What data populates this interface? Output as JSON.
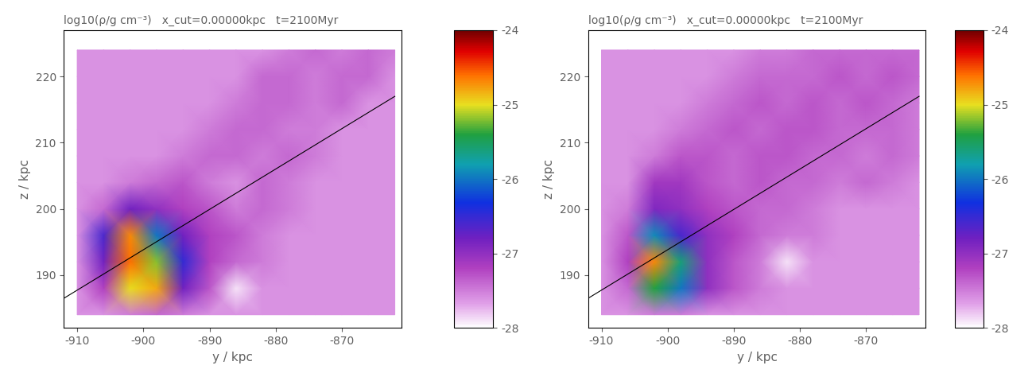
{
  "chart_data": [
    {
      "type": "heatmap",
      "title": "log10(ρ/g cm⁻³)   x_cut=0.00000kpc   t=2100Myr",
      "x_label": "y / kpc",
      "y_label": "z / kpc",
      "x": [
        -910,
        -906,
        -902,
        -898,
        -894,
        -890,
        -886,
        -882,
        -878,
        -874,
        -870,
        -866,
        -862
      ],
      "y": [
        184,
        188,
        192,
        196,
        200,
        204,
        208,
        212,
        216,
        220,
        224
      ],
      "cells": [
        [
          -27.6,
          -27.6,
          -27.5,
          -27.4,
          -27.5,
          -27.6,
          -27.6,
          -27.6,
          -27.6,
          -27.6,
          -27.6,
          -27.6,
          -27.6
        ],
        [
          -27.6,
          -27.2,
          -25.0,
          -24.8,
          -26.8,
          -27.3,
          -27.9,
          -27.6,
          -27.6,
          -27.6,
          -27.6,
          -27.6,
          -27.6
        ],
        [
          -27.6,
          -26.8,
          -24.6,
          -25.2,
          -26.5,
          -27.2,
          -27.4,
          -27.5,
          -27.6,
          -27.6,
          -27.6,
          -27.6,
          -27.6
        ],
        [
          -27.6,
          -26.6,
          -24.7,
          -26.0,
          -26.8,
          -27.2,
          -27.3,
          -27.5,
          -27.6,
          -27.6,
          -27.6,
          -27.6,
          -27.6
        ],
        [
          -27.6,
          -27.4,
          -26.8,
          -27.0,
          -27.2,
          -27.3,
          -27.5,
          -27.4,
          -27.5,
          -27.6,
          -27.6,
          -27.6,
          -27.6
        ],
        [
          -27.6,
          -27.6,
          -27.5,
          -27.4,
          -27.3,
          -27.5,
          -27.6,
          -27.4,
          -27.5,
          -27.6,
          -27.6,
          -27.6,
          -27.6
        ],
        [
          -27.6,
          -27.6,
          -27.6,
          -27.6,
          -27.5,
          -27.4,
          -27.4,
          -27.5,
          -27.4,
          -27.5,
          -27.6,
          -27.6,
          -27.6
        ],
        [
          -27.6,
          -27.6,
          -27.6,
          -27.6,
          -27.6,
          -27.5,
          -27.4,
          -27.4,
          -27.5,
          -27.5,
          -27.6,
          -27.6,
          -27.6
        ],
        [
          -27.6,
          -27.6,
          -27.6,
          -27.6,
          -27.6,
          -27.6,
          -27.5,
          -27.4,
          -27.4,
          -27.5,
          -27.4,
          -27.6,
          -27.6
        ],
        [
          -27.6,
          -27.6,
          -27.6,
          -27.6,
          -27.6,
          -27.6,
          -27.6,
          -27.4,
          -27.4,
          -27.5,
          -27.4,
          -27.4,
          -27.6
        ],
        [
          -27.6,
          -27.6,
          -27.6,
          -27.6,
          -27.6,
          -27.6,
          -27.6,
          -27.6,
          -27.5,
          -27.4,
          -27.5,
          -27.4,
          -27.5
        ]
      ],
      "xlim": [
        -912,
        -861
      ],
      "ylim": [
        182,
        227
      ],
      "xticks": [
        -910,
        -900,
        -890,
        -880,
        -870
      ],
      "yticks": [
        190,
        200,
        210,
        220
      ],
      "colorbar": {
        "range": [
          -28,
          -24
        ],
        "ticks": [
          -24,
          -25,
          -26,
          -27,
          -28
        ]
      },
      "line": {
        "x": [
          -912,
          -862
        ],
        "y": [
          186.5,
          217
        ]
      }
    },
    {
      "type": "heatmap",
      "title": "log10(ρ/g cm⁻³)   x_cut=0.00000kpc   t=2100Myr",
      "x_label": "y / kpc",
      "y_label": "z / kpc",
      "x": [
        -910,
        -906,
        -902,
        -898,
        -894,
        -890,
        -886,
        -882,
        -878,
        -874,
        -870,
        -866,
        -862
      ],
      "y": [
        184,
        188,
        192,
        196,
        200,
        204,
        208,
        212,
        216,
        220,
        224
      ],
      "cells": [
        [
          -27.6,
          -27.6,
          -27.5,
          -27.5,
          -27.6,
          -27.6,
          -27.6,
          -27.6,
          -27.6,
          -27.6,
          -27.6,
          -27.6,
          -27.6
        ],
        [
          -27.6,
          -27.4,
          -25.4,
          -26.0,
          -27.0,
          -27.3,
          -27.5,
          -27.6,
          -27.6,
          -27.6,
          -27.6,
          -27.6,
          -27.6
        ],
        [
          -27.6,
          -27.2,
          -24.7,
          -25.6,
          -27.0,
          -27.3,
          -27.5,
          -27.9,
          -27.6,
          -27.6,
          -27.6,
          -27.6,
          -27.6
        ],
        [
          -27.6,
          -27.3,
          -25.9,
          -26.6,
          -27.0,
          -27.2,
          -27.4,
          -27.5,
          -27.5,
          -27.6,
          -27.6,
          -27.6,
          -27.6
        ],
        [
          -27.6,
          -27.5,
          -26.9,
          -27.0,
          -27.2,
          -27.3,
          -27.4,
          -27.4,
          -27.5,
          -27.6,
          -27.6,
          -27.6,
          -27.6
        ],
        [
          -27.6,
          -27.6,
          -27.1,
          -27.1,
          -27.3,
          -27.4,
          -27.3,
          -27.4,
          -27.4,
          -27.5,
          -27.4,
          -27.5,
          -27.6
        ],
        [
          -27.6,
          -27.6,
          -27.5,
          -27.3,
          -27.3,
          -27.4,
          -27.3,
          -27.3,
          -27.4,
          -27.4,
          -27.5,
          -27.4,
          -27.5
        ],
        [
          -27.6,
          -27.6,
          -27.6,
          -27.5,
          -27.4,
          -27.3,
          -27.4,
          -27.3,
          -27.3,
          -27.4,
          -27.4,
          -27.4,
          -27.5
        ],
        [
          -27.6,
          -27.6,
          -27.6,
          -27.6,
          -27.5,
          -27.4,
          -27.3,
          -27.4,
          -27.3,
          -27.4,
          -27.3,
          -27.4,
          -27.5
        ],
        [
          -27.6,
          -27.6,
          -27.6,
          -27.6,
          -27.6,
          -27.5,
          -27.4,
          -27.4,
          -27.4,
          -27.3,
          -27.4,
          -27.3,
          -27.4
        ],
        [
          -27.6,
          -27.6,
          -27.6,
          -27.6,
          -27.6,
          -27.6,
          -27.5,
          -27.5,
          -27.4,
          -27.4,
          -27.4,
          -27.4,
          -27.4
        ]
      ],
      "xlim": [
        -912,
        -861
      ],
      "ylim": [
        182,
        227
      ],
      "xticks": [
        -910,
        -900,
        -890,
        -880,
        -870
      ],
      "yticks": [
        190,
        200,
        210,
        220
      ],
      "colorbar": {
        "range": [
          -28,
          -24
        ],
        "ticks": [
          -24,
          -25,
          -26,
          -27,
          -28
        ]
      },
      "line": {
        "x": [
          -912,
          -862
        ],
        "y": [
          186.5,
          217
        ]
      }
    }
  ]
}
